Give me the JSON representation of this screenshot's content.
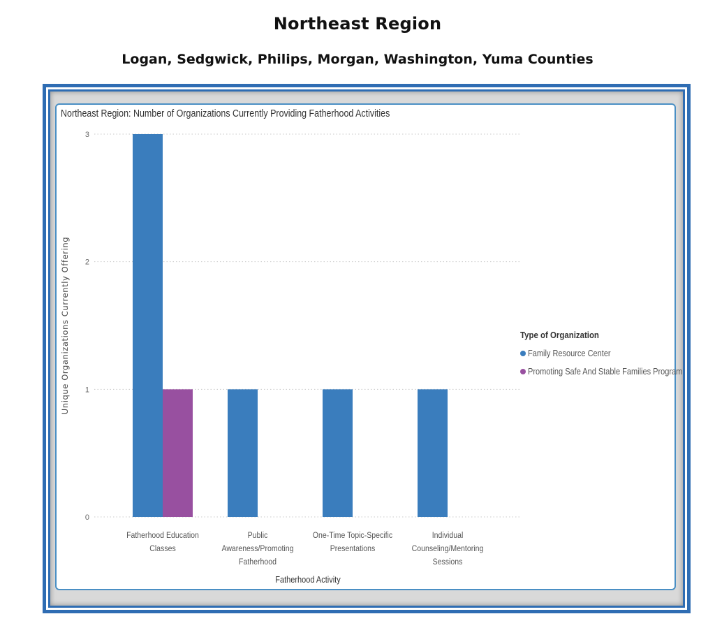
{
  "page": {
    "title": "Northeast Region",
    "subtitle": "Logan, Sedgwick, Philips, Morgan, Washington, Yuma Counties"
  },
  "chart_data": {
    "type": "bar",
    "title": "Northeast Region: Number of Organizations Currently Providing Fatherhood Activities",
    "xlabel": "Fatherhood Activity",
    "ylabel": "Unique Organizations Currently Offering",
    "ylim": [
      0,
      3
    ],
    "yticks": [
      0,
      1,
      2,
      3
    ],
    "grid": true,
    "legend_title": "Type of Organization",
    "legend_position": "right",
    "categories": [
      "Fatherhood Education Classes",
      "Public Awareness/Promoting Fatherhood",
      "One-Time Topic-Specific Presentations",
      "Individual Counseling/Mentoring Sessions"
    ],
    "category_label_lines": [
      [
        "Fatherhood Education",
        "Classes"
      ],
      [
        "Public",
        "Awareness/Promoting",
        "Fatherhood"
      ],
      [
        "One-Time Topic-Specific",
        "Presentations"
      ],
      [
        "Individual",
        "Counseling/Mentoring",
        "Sessions"
      ]
    ],
    "series": [
      {
        "name": "Family Resource Center",
        "color": "#3a7dbd",
        "values": [
          3,
          1,
          1,
          1
        ]
      },
      {
        "name": "Promoting Safe And Stable Families Program",
        "color": "#9850a0",
        "values": [
          1,
          0,
          0,
          0
        ]
      }
    ]
  }
}
